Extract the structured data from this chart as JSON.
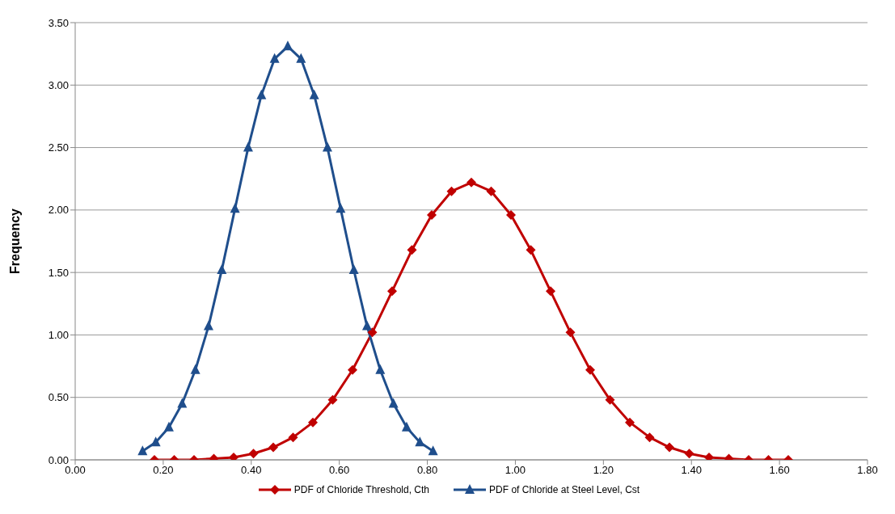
{
  "chart_data": {
    "type": "line",
    "ylabel": "Frequency",
    "xlim": [
      0,
      1.8
    ],
    "ylim": [
      0,
      3.5
    ],
    "xticks": [
      {
        "value": 0,
        "label": "0.00"
      },
      {
        "value": 0.2,
        "label": "0.20"
      },
      {
        "value": 0.4,
        "label": "0.40"
      },
      {
        "value": 0.6,
        "label": "0.60"
      },
      {
        "value": 0.8,
        "label": "0.80"
      },
      {
        "value": 1,
        "label": "1.00"
      },
      {
        "value": 1.2,
        "label": "1.20"
      },
      {
        "value": 1.4,
        "label": "1.40"
      },
      {
        "value": 1.6,
        "label": "1.60"
      },
      {
        "value": 1.8,
        "label": "1.80"
      }
    ],
    "yticks": [
      {
        "value": 0,
        "label": "0.00"
      },
      {
        "value": 0.5,
        "label": "0.50"
      },
      {
        "value": 1,
        "label": "1.00"
      },
      {
        "value": 1.5,
        "label": "1.50"
      },
      {
        "value": 2,
        "label": "2.00"
      },
      {
        "value": 2.5,
        "label": "2.50"
      },
      {
        "value": 3,
        "label": "3.00"
      },
      {
        "value": 3.5,
        "label": "3.50"
      }
    ],
    "grid": "y",
    "legend": "bottom",
    "line_style": "solid",
    "series": [
      {
        "name": "PDF of Chloride Threshold, Cth",
        "color": "#c00000",
        "marker": "diamond",
        "x": [
          0.18,
          0.225,
          0.27,
          0.315,
          0.36,
          0.405,
          0.45,
          0.495,
          0.54,
          0.585,
          0.63,
          0.675,
          0.72,
          0.765,
          0.81,
          0.855,
          0.9,
          0.945,
          0.99,
          1.035,
          1.08,
          1.125,
          1.17,
          1.215,
          1.26,
          1.305,
          1.35,
          1.395,
          1.44,
          1.485,
          1.53,
          1.575,
          1.62
        ],
        "values": [
          0,
          0,
          0,
          0.01,
          0.02,
          0.05,
          0.1,
          0.18,
          0.3,
          0.48,
          0.72,
          1.02,
          1.35,
          1.68,
          1.96,
          2.15,
          2.22,
          2.15,
          1.96,
          1.68,
          1.35,
          1.02,
          0.72,
          0.48,
          0.3,
          0.18,
          0.1,
          0.05,
          0.02,
          0.01,
          0,
          0,
          0
        ]
      },
      {
        "name": "PDF of Chloride at Steel Level, Cst",
        "color": "#1f4e8c",
        "marker": "triangle",
        "x": [
          0.153,
          0.183,
          0.213,
          0.243,
          0.273,
          0.303,
          0.333,
          0.363,
          0.393,
          0.423,
          0.453,
          0.483,
          0.513,
          0.543,
          0.573,
          0.603,
          0.633,
          0.663,
          0.693,
          0.723,
          0.753,
          0.783,
          0.813
        ],
        "values": [
          0.07,
          0.14,
          0.26,
          0.45,
          0.72,
          1.07,
          1.52,
          2.01,
          2.5,
          2.92,
          3.21,
          3.31,
          3.21,
          2.92,
          2.5,
          2.01,
          1.52,
          1.07,
          0.72,
          0.45,
          0.26,
          0.14,
          0.07
        ]
      }
    ]
  }
}
